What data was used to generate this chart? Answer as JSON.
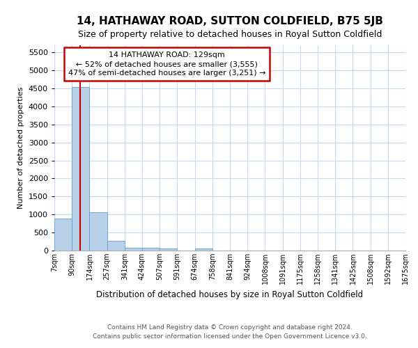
{
  "title": "14, HATHAWAY ROAD, SUTTON COLDFIELD, B75 5JB",
  "subtitle": "Size of property relative to detached houses in Royal Sutton Coldfield",
  "xlabel": "Distribution of detached houses by size in Royal Sutton Coldfield",
  "ylabel": "Number of detached properties",
  "footer_line1": "Contains HM Land Registry data © Crown copyright and database right 2024.",
  "footer_line2": "Contains public sector information licensed under the Open Government Licence v3.0.",
  "annotation_line1": "14 HATHAWAY ROAD: 129sqm",
  "annotation_line2": "← 52% of detached houses are smaller (3,555)",
  "annotation_line3": "47% of semi-detached houses are larger (3,251) →",
  "property_size": 129,
  "bar_color": "#b8d0e8",
  "bar_edge_color": "#5a9fd4",
  "vline_color": "#cc0000",
  "annotation_box_edgecolor": "#cc0000",
  "background_color": "#ffffff",
  "grid_color": "#c8d8ee",
  "bin_edges": [
    7,
    90,
    174,
    257,
    341,
    424,
    507,
    591,
    674,
    758,
    841,
    924,
    1008,
    1091,
    1175,
    1258,
    1341,
    1425,
    1508,
    1592,
    1675
  ],
  "bin_labels": [
    "7sqm",
    "90sqm",
    "174sqm",
    "257sqm",
    "341sqm",
    "424sqm",
    "507sqm",
    "591sqm",
    "674sqm",
    "758sqm",
    "841sqm",
    "924sqm",
    "1008sqm",
    "1091sqm",
    "1175sqm",
    "1258sqm",
    "1341sqm",
    "1425sqm",
    "1508sqm",
    "1592sqm",
    "1675sqm"
  ],
  "bar_heights": [
    880,
    4550,
    1060,
    270,
    85,
    75,
    55,
    0,
    50,
    0,
    0,
    0,
    0,
    0,
    0,
    0,
    0,
    0,
    0,
    0
  ],
  "ylim": [
    0,
    5700
  ],
  "yticks": [
    0,
    500,
    1000,
    1500,
    2000,
    2500,
    3000,
    3500,
    4000,
    4500,
    5000,
    5500
  ],
  "title_fontsize": 11,
  "subtitle_fontsize": 9,
  "ylabel_fontsize": 8,
  "xlabel_fontsize": 8.5,
  "tick_fontsize": 8,
  "xtick_fontsize": 7,
  "footer_fontsize": 6.5,
  "annotation_fontsize": 8
}
